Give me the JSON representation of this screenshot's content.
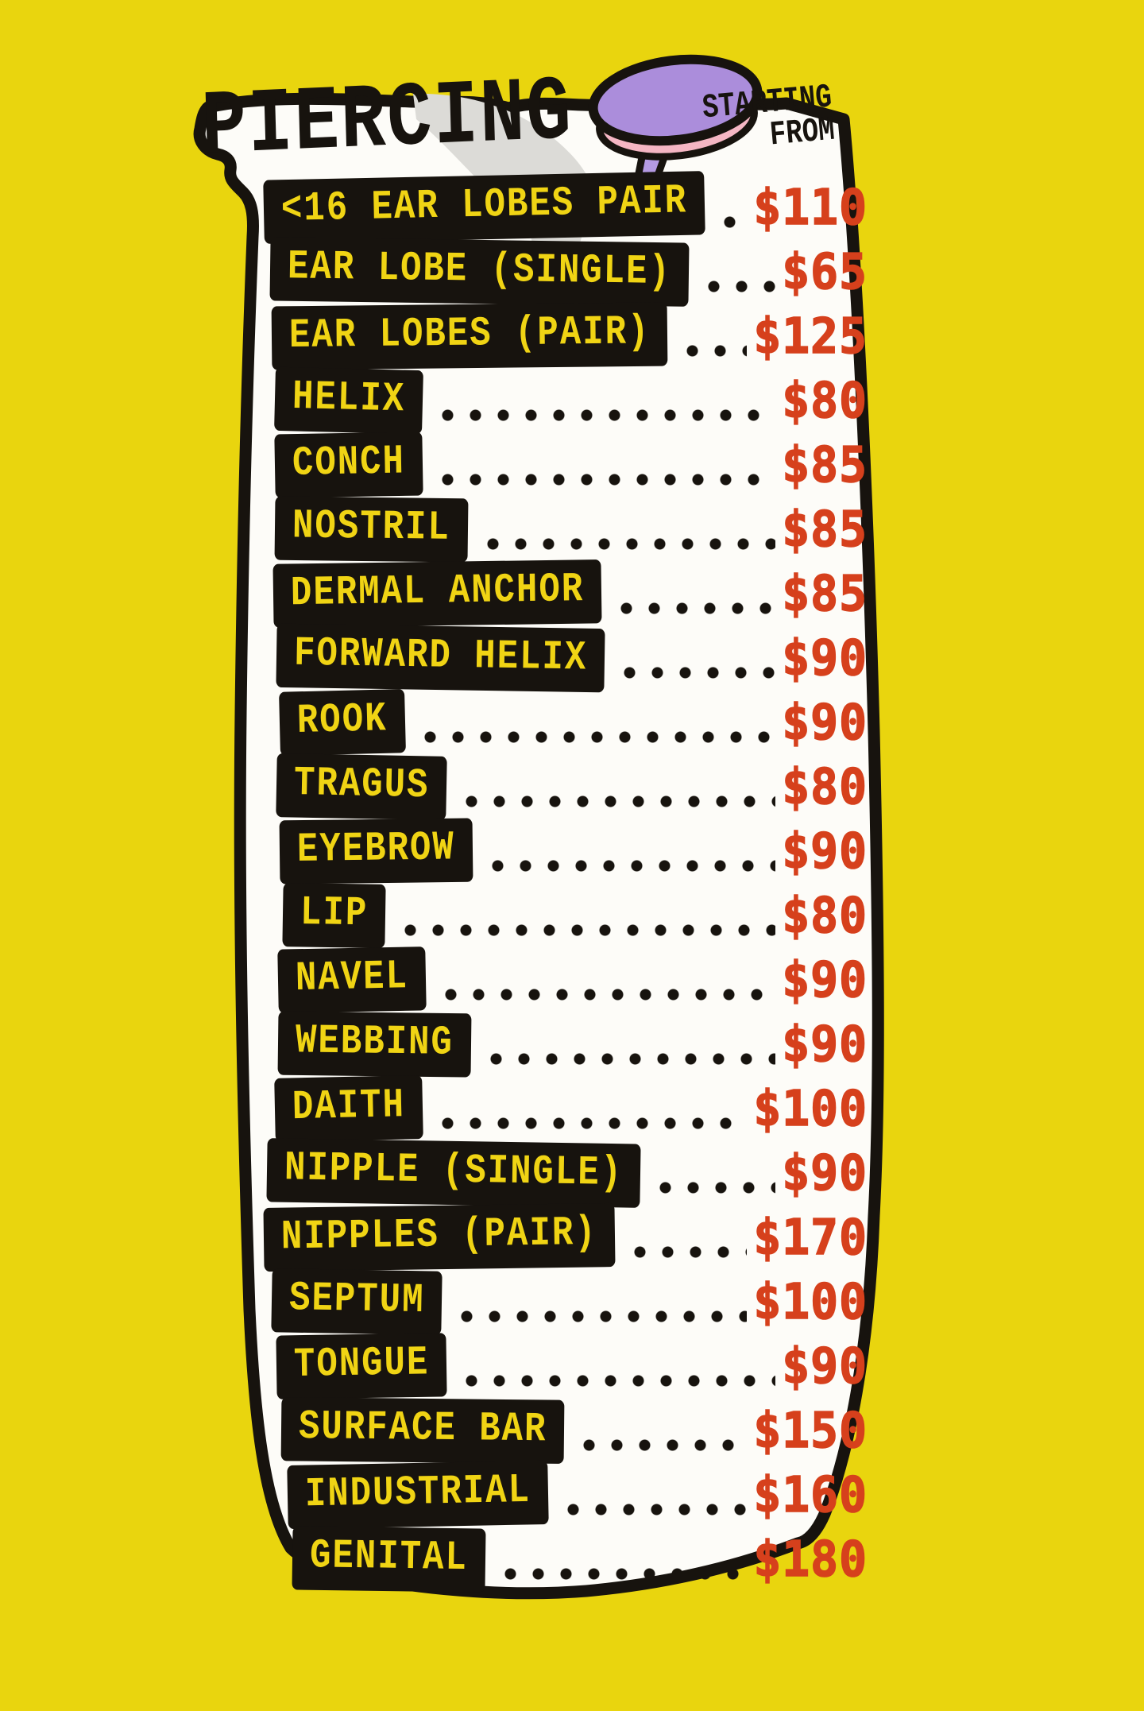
{
  "poster": {
    "title": "PIERCING",
    "starting_from": {
      "line1": "STARTING",
      "line2": "FROM"
    },
    "pin_icon": "push-pin-icon",
    "items": [
      {
        "label": "<16 EAR LOBES PAIR",
        "price": "$110"
      },
      {
        "label": "EAR LOBE (SINGLE)",
        "price": "$65"
      },
      {
        "label": "EAR LOBES (PAIR)",
        "price": "$125"
      },
      {
        "label": "HELIX",
        "price": "$80"
      },
      {
        "label": "CONCH",
        "price": "$85"
      },
      {
        "label": "NOSTRIL",
        "price": "$85"
      },
      {
        "label": "DERMAL ANCHOR",
        "price": "$85"
      },
      {
        "label": "FORWARD HELIX",
        "price": "$90"
      },
      {
        "label": "ROOK",
        "price": "$90"
      },
      {
        "label": "TRAGUS",
        "price": "$80"
      },
      {
        "label": "EYEBROW",
        "price": "$90"
      },
      {
        "label": "LIP",
        "price": "$80"
      },
      {
        "label": "NAVEL",
        "price": "$90"
      },
      {
        "label": "WEBBING",
        "price": "$90"
      },
      {
        "label": "DAITH",
        "price": "$100"
      },
      {
        "label": "NIPPLE (SINGLE)",
        "price": "$90"
      },
      {
        "label": "NIPPLES (PAIR)",
        "price": "$170"
      },
      {
        "label": "SEPTUM",
        "price": "$100"
      },
      {
        "label": "TONGUE",
        "price": "$90"
      },
      {
        "label": "SURFACE BAR",
        "price": "$150"
      },
      {
        "label": "INDUSTRIAL",
        "price": "$160"
      },
      {
        "label": "GENITAL",
        "price": "$180"
      }
    ],
    "colors": {
      "background": "#e9d50e",
      "paper": "#fdfcf8",
      "ink": "#17130e",
      "label_text": "#f0d414",
      "price": "#d6401c",
      "pin_head": "#ab8ddb",
      "pin_needle": "#b49ae2",
      "pin_rim": "#f5b6c3",
      "shadow": "#dcdbd7"
    }
  }
}
